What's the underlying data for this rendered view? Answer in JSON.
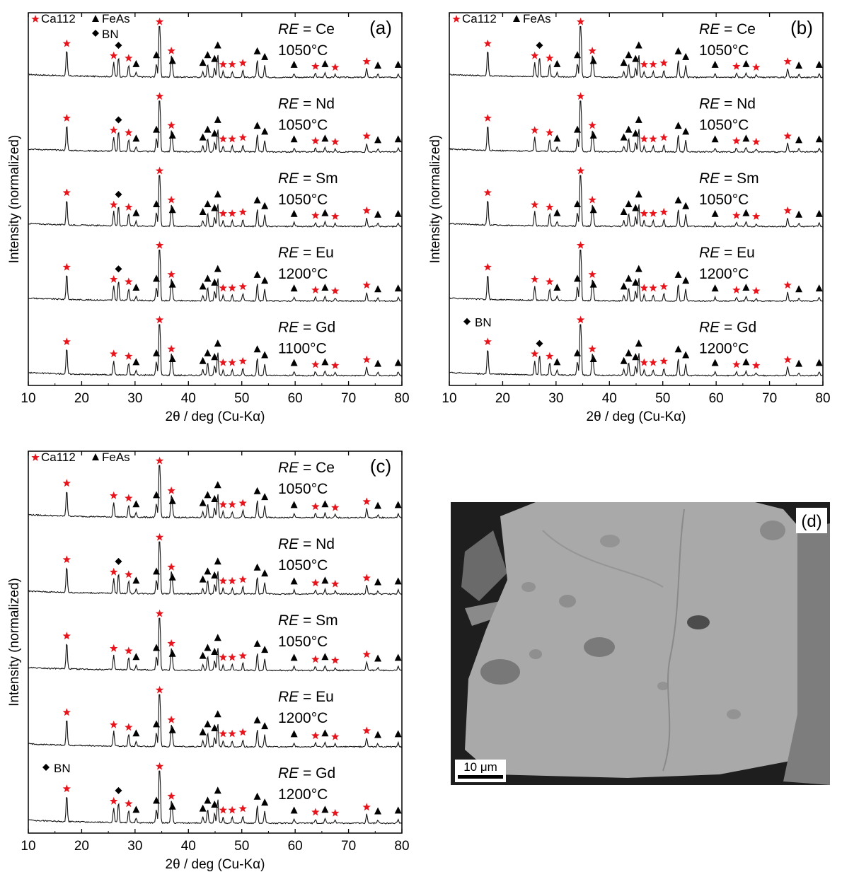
{
  "common": {
    "xlabel": "2θ / deg (Cu-Kα)",
    "ylabel": "Intensity (normalized)",
    "x_ticks": [
      10,
      20,
      30,
      40,
      50,
      60,
      70,
      80
    ],
    "legend_ca112": "Ca112",
    "legend_feas": "FeAs",
    "legend_bn": "BN",
    "star_color": "#e8141c",
    "marker_color": "#000000"
  },
  "panels": [
    {
      "label": "(a)",
      "bn_legend_position": "top-left",
      "traces": [
        {
          "re_label": "RE",
          "re_value": "= Ce",
          "temperature": "1050°C",
          "bn_peak": 26.9
        },
        {
          "re_label": "RE",
          "re_value": "= Nd",
          "temperature": "1050°C",
          "bn_peak": 26.9
        },
        {
          "re_label": "RE",
          "re_value": "= Sm",
          "temperature": "1050°C",
          "bn_peak": 26.9
        },
        {
          "re_label": "RE",
          "re_value": "= Eu",
          "temperature": "1200°C",
          "bn_peak": 26.9
        },
        {
          "re_label": "RE",
          "re_value": "= Gd",
          "temperature": "1100°C",
          "bn_peak": null
        }
      ]
    },
    {
      "label": "(b)",
      "bn_legend_position": "bottom-left",
      "traces": [
        {
          "re_label": "RE",
          "re_value": "= Ce",
          "temperature": "1050°C",
          "bn_peak": 26.9
        },
        {
          "re_label": "RE",
          "re_value": "= Nd",
          "temperature": "1050°C",
          "bn_peak": null
        },
        {
          "re_label": "RE",
          "re_value": "= Sm",
          "temperature": "1050°C",
          "bn_peak": null
        },
        {
          "re_label": "RE",
          "re_value": "= Eu",
          "temperature": "1200°C",
          "bn_peak": null
        },
        {
          "re_label": "RE",
          "re_value": "= Gd",
          "temperature": "1200°C",
          "bn_peak": 26.9
        }
      ]
    },
    {
      "label": "(c)",
      "bn_legend_position": "bottom-left",
      "traces": [
        {
          "re_label": "RE",
          "re_value": "= Ce",
          "temperature": "1050°C",
          "bn_peak": null
        },
        {
          "re_label": "RE",
          "re_value": "= Nd",
          "temperature": "1050°C",
          "bn_peak": 26.9
        },
        {
          "re_label": "RE",
          "re_value": "= Sm",
          "temperature": "1050°C",
          "bn_peak": null
        },
        {
          "re_label": "RE",
          "re_value": "= Eu",
          "temperature": "1200°C",
          "bn_peak": null
        },
        {
          "re_label": "RE",
          "re_value": "= Gd",
          "temperature": "1200°C",
          "bn_peak": 26.9
        }
      ]
    }
  ],
  "chart_data": [
    {
      "type": "line",
      "xlim": [
        10,
        80
      ],
      "ylim": [
        0,
        5
      ],
      "ca112_peaks": [
        17.2,
        26.0,
        28.8,
        34.6,
        36.8,
        46.5,
        48.2,
        50.2,
        63.8,
        67.5,
        73.4
      ],
      "ca112_peak_heights": [
        0.55,
        0.3,
        0.25,
        1.0,
        0.4,
        0.12,
        0.12,
        0.15,
        0.08,
        0.06,
        0.18
      ],
      "feas_peaks": [
        30.2,
        34.0,
        34.6,
        37.0,
        42.7,
        43.6,
        44.9,
        45.5,
        52.9,
        54.3,
        59.8,
        65.6,
        75.5,
        79.3
      ],
      "feas_peak_heights": [
        0.12,
        0.35,
        0.95,
        0.2,
        0.15,
        0.35,
        0.25,
        0.6,
        0.45,
        0.3,
        0.1,
        0.12,
        0.08,
        0.1
      ],
      "series": [
        {
          "name": "RE = Ce",
          "offset": 4
        },
        {
          "name": "RE = Nd",
          "offset": 3
        },
        {
          "name": "RE = Sm",
          "offset": 2
        },
        {
          "name": "RE = Eu",
          "offset": 1
        },
        {
          "name": "RE = Gd",
          "offset": 0
        }
      ]
    },
    {
      "type": "line",
      "xlim": [
        10,
        80
      ],
      "ylim": [
        0,
        5
      ],
      "series": [
        {
          "name": "RE = Ce",
          "offset": 4
        },
        {
          "name": "RE = Nd",
          "offset": 3
        },
        {
          "name": "RE = Sm",
          "offset": 2
        },
        {
          "name": "RE = Eu",
          "offset": 1
        },
        {
          "name": "RE = Gd",
          "offset": 0
        }
      ]
    },
    {
      "type": "line",
      "xlim": [
        10,
        80
      ],
      "ylim": [
        0,
        5
      ],
      "series": [
        {
          "name": "RE = Ce",
          "offset": 4
        },
        {
          "name": "RE = Nd",
          "offset": 3
        },
        {
          "name": "RE = Sm",
          "offset": 2
        },
        {
          "name": "RE = Eu",
          "offset": 1
        },
        {
          "name": "RE = Gd",
          "offset": 0
        }
      ]
    }
  ],
  "image_panel": {
    "label": "(d)",
    "scale_bar": "10 μm"
  }
}
